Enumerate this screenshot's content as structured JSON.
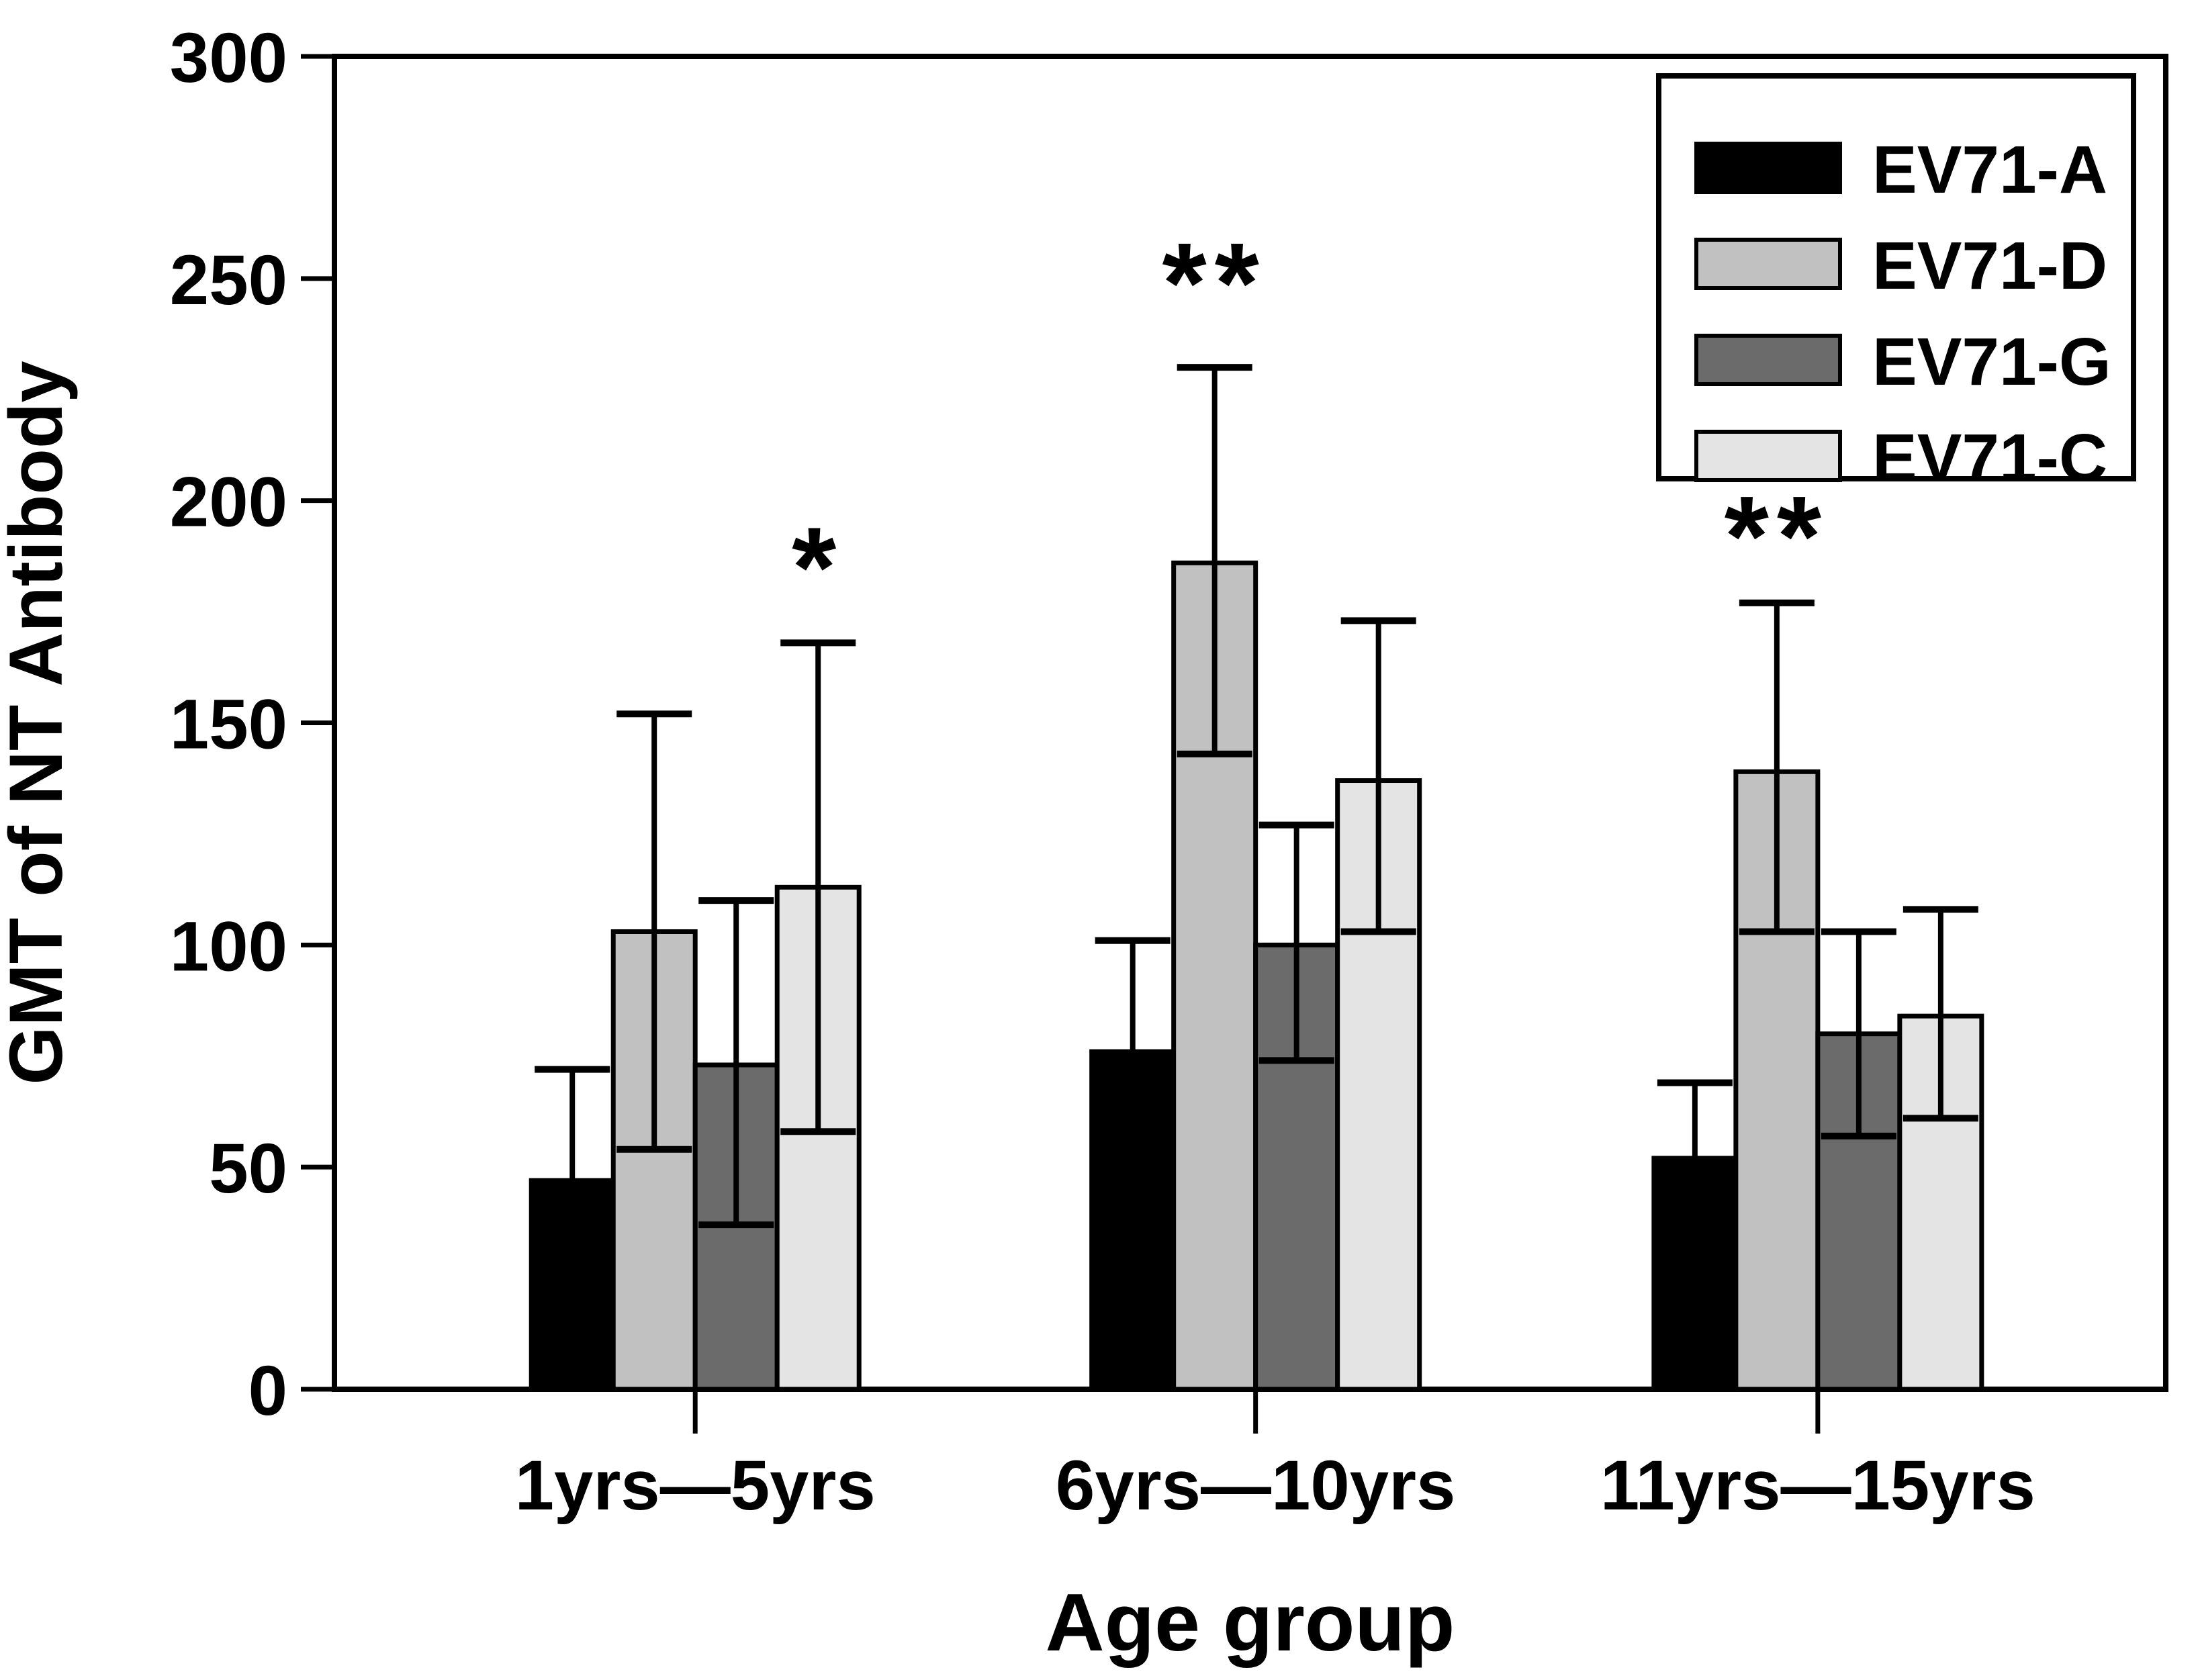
{
  "figure": {
    "background": "#ffffff",
    "text_color": "#000000",
    "axis_color": "#000000"
  },
  "chart_data": {
    "type": "bar",
    "title": "",
    "xlabel": "Age group",
    "ylabel": "GMT of NT Antibody",
    "ylim": [
      0,
      300
    ],
    "yticks": [
      0,
      50,
      100,
      150,
      200,
      250,
      300
    ],
    "categories": [
      "1yrs—5yrs",
      "6yrs—10yrs",
      "11yrs—15yrs"
    ],
    "grid": false,
    "error_bars": true,
    "series": [
      {
        "name": "EV71-A",
        "color": "#000000",
        "values": [
          47,
          76,
          52
        ],
        "err_up": [
          25,
          25,
          17
        ],
        "err_down": [
          0,
          0,
          0
        ]
      },
      {
        "name": "EV71-D",
        "color": "#c1c1c1",
        "values": [
          103,
          186,
          139
        ],
        "err_up": [
          49,
          44,
          38
        ],
        "err_down": [
          49,
          43,
          36
        ]
      },
      {
        "name": "EV71-G",
        "color": "#6b6b6b",
        "values": [
          73,
          100,
          80
        ],
        "err_up": [
          37,
          27,
          23
        ],
        "err_down": [
          36,
          26,
          23
        ]
      },
      {
        "name": "EV71-C",
        "color": "#e4e4e4",
        "values": [
          113,
          137,
          84
        ],
        "err_up": [
          55,
          36,
          24
        ],
        "err_down": [
          55,
          34,
          23
        ]
      }
    ],
    "annotations": [
      {
        "text": "*",
        "group": 0,
        "series": "EV71-C",
        "y": 189
      },
      {
        "text": "**",
        "group": 1,
        "series": "EV71-D",
        "y": 253
      },
      {
        "text": "**",
        "group": 2,
        "series": "EV71-D",
        "y": 196
      }
    ],
    "legend": {
      "position": "top-right",
      "entries": [
        "EV71-A",
        "EV71-D",
        "EV71-G",
        "EV71-C"
      ]
    }
  }
}
